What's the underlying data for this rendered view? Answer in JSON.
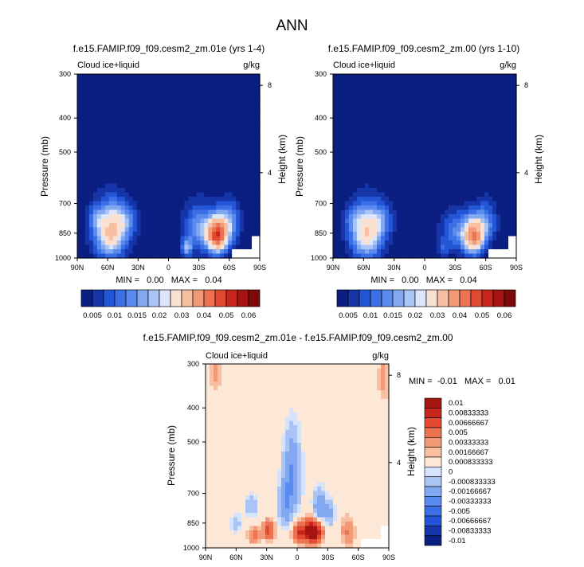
{
  "page_title": "ANN",
  "colors": {
    "abs_palette": [
      "#0b1f82",
      "#1535a8",
      "#2356d6",
      "#3a6fe6",
      "#5b8bee",
      "#82a8f2",
      "#aac4f6",
      "#dbe6fb",
      "#fbe1d1",
      "#f7c0a2",
      "#f29a78",
      "#ec7252",
      "#e14a30",
      "#c8261c",
      "#a51410",
      "#7a0b08"
    ],
    "diff_palette": [
      "#0b1f82",
      "#1535a8",
      "#2356d6",
      "#3a6fe6",
      "#5b8bee",
      "#82a8f2",
      "#aac4f6",
      "#d6e4fb",
      "#fde8d8",
      "#f7c0a2",
      "#f29a78",
      "#ec7252",
      "#e14a30",
      "#c8261c",
      "#a51410"
    ]
  },
  "chart_data": [
    {
      "id": "left",
      "type": "heatmap",
      "title": "f.e15.FAMIP.f09_f09.cesm2_zm.01e (yrs 1-4)",
      "variable": "Cloud ice+liquid",
      "units": "g/kg",
      "ylabel": "Pressure (mb)",
      "y2label": "Height (km)",
      "xticks": [
        "90N",
        "60N",
        "30N",
        "0",
        "30S",
        "60S",
        "90S"
      ],
      "yticks": [
        300,
        400,
        500,
        700,
        850,
        1000
      ],
      "ylim": [
        300,
        1000
      ],
      "y2ticks": [
        {
          "value": 8,
          "label": "8"
        },
        {
          "value": 4,
          "label": "4"
        }
      ],
      "stats": "MIN =   0.00   MAX =   0.04",
      "features": [
        {
          "lat": 57,
          "p": 840,
          "amp": 0.026,
          "slat": 15,
          "sp": 140
        },
        {
          "lat": 42,
          "p": 780,
          "amp": 0.008,
          "slat": 12,
          "sp": 80
        },
        {
          "lat": 72,
          "p": 770,
          "amp": 0.006,
          "slat": 8,
          "sp": 60
        },
        {
          "lat": -48,
          "p": 860,
          "amp": 0.041,
          "slat": 10,
          "sp": 95
        },
        {
          "lat": -30,
          "p": 820,
          "amp": 0.012,
          "slat": 14,
          "sp": 120
        },
        {
          "lat": -18,
          "p": 935,
          "amp": 0.014,
          "slat": 5,
          "sp": 55
        },
        {
          "lat": -60,
          "p": 790,
          "amp": 0.012,
          "slat": 10,
          "sp": 100
        }
      ],
      "colorbar": {
        "orientation": "horizontal",
        "labels": [
          "0.005",
          "0.01",
          "0.015",
          "0.02",
          "0.03",
          "0.04",
          "0.05",
          "0.06"
        ],
        "levels": [
          0.0025,
          0.005,
          0.0075,
          0.01,
          0.0125,
          0.015,
          0.0175,
          0.02,
          0.025,
          0.03,
          0.035,
          0.04,
          0.045,
          0.05,
          0.055
        ]
      }
    },
    {
      "id": "right",
      "type": "heatmap",
      "title": "f.e15.FAMIP.f09_f09.cesm2_zm.00 (yrs 1-10)",
      "variable": "Cloud ice+liquid",
      "units": "g/kg",
      "ylabel": "Pressure (mb)",
      "y2label": "Height (km)",
      "xticks": [
        "90N",
        "60N",
        "30N",
        "0",
        "30S",
        "60S",
        "90S"
      ],
      "yticks": [
        300,
        400,
        500,
        700,
        850,
        1000
      ],
      "ylim": [
        300,
        1000
      ],
      "y2ticks": [
        {
          "value": 8,
          "label": "8"
        },
        {
          "value": 4,
          "label": "4"
        }
      ],
      "stats": "MIN =   0.00   MAX =   0.04",
      "features": [
        {
          "lat": 57,
          "p": 845,
          "amp": 0.024,
          "slat": 15,
          "sp": 140
        },
        {
          "lat": 42,
          "p": 780,
          "amp": 0.007,
          "slat": 12,
          "sp": 80
        },
        {
          "lat": 72,
          "p": 770,
          "amp": 0.005,
          "slat": 8,
          "sp": 60
        },
        {
          "lat": -48,
          "p": 865,
          "amp": 0.034,
          "slat": 10,
          "sp": 95
        },
        {
          "lat": -30,
          "p": 840,
          "amp": 0.009,
          "slat": 14,
          "sp": 110
        },
        {
          "lat": -18,
          "p": 940,
          "amp": 0.006,
          "slat": 5,
          "sp": 50
        },
        {
          "lat": -60,
          "p": 790,
          "amp": 0.01,
          "slat": 10,
          "sp": 100
        }
      ],
      "colorbar": {
        "orientation": "horizontal",
        "labels": [
          "0.005",
          "0.01",
          "0.015",
          "0.02",
          "0.03",
          "0.04",
          "0.05",
          "0.06"
        ],
        "levels": [
          0.0025,
          0.005,
          0.0075,
          0.01,
          0.0125,
          0.015,
          0.0175,
          0.02,
          0.025,
          0.03,
          0.035,
          0.04,
          0.045,
          0.05,
          0.055
        ]
      }
    },
    {
      "id": "diff",
      "type": "heatmap",
      "title": "f.e15.FAMIP.f09_f09.cesm2_zm.01e - f.e15.FAMIP.f09_f09.cesm2_zm.00",
      "variable": "Cloud ice+liquid",
      "units": "g/kg",
      "ylabel": "Pressure (mb)",
      "y2label": "Height (km)",
      "xticks": [
        "90N",
        "60N",
        "30N",
        "0",
        "30S",
        "60S",
        "90S"
      ],
      "yticks": [
        300,
        400,
        500,
        700,
        850,
        1000
      ],
      "ylim": [
        300,
        1000
      ],
      "y2ticks": [
        {
          "value": 8,
          "label": "8"
        },
        {
          "value": 4,
          "label": "4"
        }
      ],
      "stats": "MIN =  -0.01   MAX =   0.01",
      "features": [
        {
          "lat": -15,
          "p": 900,
          "amp": 0.0105,
          "slat": 8,
          "sp": 60
        },
        {
          "lat": -2,
          "p": 905,
          "amp": 0.0045,
          "slat": 6,
          "sp": 50
        },
        {
          "lat": 28,
          "p": 890,
          "amp": 0.0045,
          "slat": 5,
          "sp": 50
        },
        {
          "lat": 42,
          "p": 920,
          "amp": 0.002,
          "slat": 6,
          "sp": 50
        },
        {
          "lat": -50,
          "p": 900,
          "amp": 0.0018,
          "slat": 6,
          "sp": 80
        },
        {
          "lat": -85,
          "p": 330,
          "amp": 0.0012,
          "slat": 5,
          "sp": 50
        },
        {
          "lat": 80,
          "p": 320,
          "amp": 0.001,
          "slat": 6,
          "sp": 40
        },
        {
          "lat": 5,
          "p": 620,
          "amp": -0.0035,
          "slat": 8,
          "sp": 150
        },
        {
          "lat": 12,
          "p": 750,
          "amp": -0.003,
          "slat": 6,
          "sp": 100
        },
        {
          "lat": -22,
          "p": 760,
          "amp": -0.003,
          "slat": 6,
          "sp": 80
        },
        {
          "lat": -32,
          "p": 800,
          "amp": -0.0022,
          "slat": 5,
          "sp": 60
        },
        {
          "lat": 45,
          "p": 760,
          "amp": -0.0015,
          "slat": 6,
          "sp": 60
        },
        {
          "lat": 60,
          "p": 850,
          "amp": -0.0012,
          "slat": 6,
          "sp": 60
        }
      ],
      "colorbar": {
        "orientation": "vertical",
        "labels": [
          "0.01",
          "0.00833333",
          "0.00666667",
          "0.005",
          "0.00333333",
          "0.00166667",
          "0.000833333",
          "0",
          "-0.000833333",
          "-0.00166667",
          "-0.00333333",
          "-0.005",
          "-0.00666667",
          "-0.00833333",
          "-0.01"
        ],
        "levels": [
          -0.01,
          -0.00833333,
          -0.00666667,
          -0.005,
          -0.00333333,
          -0.00166667,
          -0.000833333,
          -0.0004,
          0.0004,
          0.000833333,
          0.00166667,
          0.00333333,
          0.005,
          0.00666667,
          0.00833333,
          0.01
        ]
      }
    }
  ]
}
